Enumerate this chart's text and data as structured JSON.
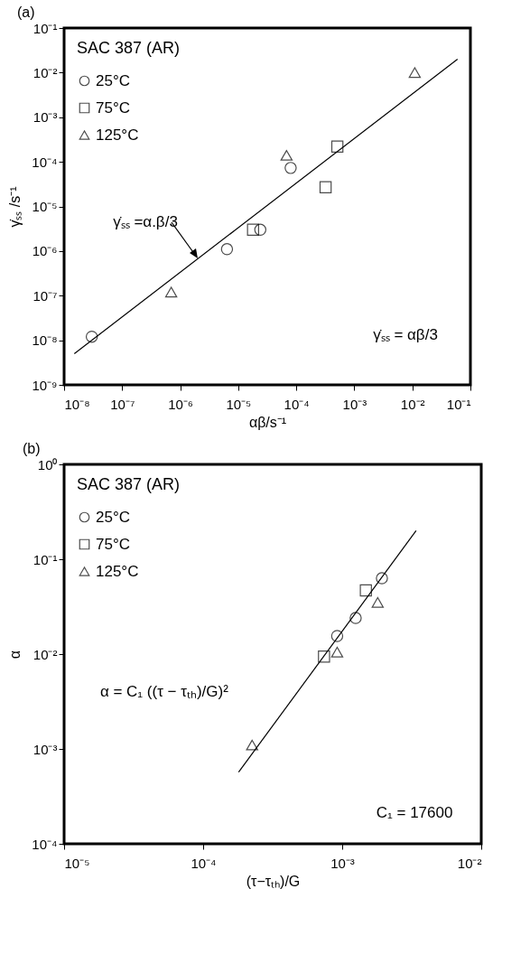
{
  "chart_data": [
    {
      "type": "scatter",
      "title": "(a)",
      "xlabel": "αβ/s⁻¹",
      "ylabel": "γ̇ₛₛ /s⁻¹",
      "legend_title": "SAC 387 (AR)",
      "log": "xy",
      "grid": false,
      "legend": "top left",
      "xlim": [
        1e-08,
        0.1
      ],
      "ylim": [
        1e-09,
        0.1
      ],
      "xticks": [
        {
          "value": 1e-08,
          "label": "10⁻⁸"
        },
        {
          "value": 1e-07,
          "label": "10⁻⁷"
        },
        {
          "value": 1e-06,
          "label": "10⁻⁶"
        },
        {
          "value": 1e-05,
          "label": "10⁻⁵"
        },
        {
          "value": 0.0001,
          "label": "10⁻⁴"
        },
        {
          "value": 0.001,
          "label": "10⁻³"
        },
        {
          "value": 0.01,
          "label": "10⁻²"
        },
        {
          "value": 0.1,
          "label": "10⁻¹"
        }
      ],
      "yticks": [
        {
          "value": 1e-09,
          "label": "10⁻⁹"
        },
        {
          "value": 1e-08,
          "label": "10⁻⁸"
        },
        {
          "value": 1e-07,
          "label": "10⁻⁷"
        },
        {
          "value": 1e-06,
          "label": "10⁻⁶"
        },
        {
          "value": 1e-05,
          "label": "10⁻⁵"
        },
        {
          "value": 0.0001,
          "label": "10⁻⁴"
        },
        {
          "value": 0.001,
          "label": "10⁻³"
        },
        {
          "value": 0.01,
          "label": "10⁻²"
        },
        {
          "value": 0.1,
          "label": "10⁻¹"
        }
      ],
      "series": [
        {
          "name": "25°C",
          "color": "#000000",
          "marker": "circle",
          "x": [
            3e-08,
            6.4e-06,
            2.4e-05,
            8e-05
          ],
          "values": [
            1.2e-08,
            1.1e-06,
            3e-06,
            7.3e-05
          ]
        },
        {
          "name": "75°C",
          "color": "#000000",
          "marker": "square",
          "x": [
            1.8e-05,
            0.00032,
            0.00051
          ],
          "values": [
            3e-06,
            2.7e-05,
            0.00022
          ]
        },
        {
          "name": "125°C",
          "color": "#000000",
          "marker": "triangle",
          "x": [
            7e-07,
            6.8e-05,
            0.011
          ],
          "values": [
            1.2e-07,
            0.00014,
            0.01
          ]
        },
        {
          "type": "line",
          "color": "#000000",
          "line_style": "solid",
          "x": [
            1.5e-08,
            0.06
          ],
          "values": [
            5e-09,
            0.02
          ]
        }
      ],
      "annotations": [
        "γ̇ₛₛ =α.β/3",
        "γ̇ₛₛ = αβ/3"
      ]
    },
    {
      "type": "scatter",
      "title": "(b)",
      "xlabel": "(τ−τₜₕ)/G",
      "ylabel": "α",
      "legend_title": "SAC 387 (AR)",
      "log": "xy",
      "grid": false,
      "legend": "top left",
      "xlim": [
        1e-05,
        0.01
      ],
      "ylim": [
        0.0001,
        1
      ],
      "xticks": [
        {
          "value": 1e-05,
          "label": "10⁻⁵"
        },
        {
          "value": 0.0001,
          "label": "10⁻⁴"
        },
        {
          "value": 0.001,
          "label": "10⁻³"
        },
        {
          "value": 0.01,
          "label": "10⁻²"
        }
      ],
      "yticks": [
        {
          "value": 0.0001,
          "label": "10⁻⁴"
        },
        {
          "value": 0.001,
          "label": "10⁻³"
        },
        {
          "value": 0.01,
          "label": "10⁻²"
        },
        {
          "value": 0.1,
          "label": "10⁻¹"
        },
        {
          "value": 1,
          "label": "10⁰"
        }
      ],
      "series": [
        {
          "name": "25°C",
          "color": "#000000",
          "marker": "circle",
          "x": [
            0.00092,
            0.00125,
            0.00193
          ],
          "values": [
            0.0155,
            0.024,
            0.063
          ]
        },
        {
          "name": "75°C",
          "color": "#000000",
          "marker": "square",
          "x": [
            0.00074,
            0.00148
          ],
          "values": [
            0.0094,
            0.047
          ]
        },
        {
          "name": "125°C",
          "color": "#000000",
          "marker": "triangle",
          "x": [
            0.000225,
            0.00092,
            0.0018
          ],
          "values": [
            0.0011,
            0.0105,
            0.035
          ]
        },
        {
          "type": "line",
          "color": "#000000",
          "line_style": "solid",
          "x": [
            0.00018,
            0.0034
          ],
          "values": [
            0.00057,
            0.2
          ]
        }
      ],
      "annotations": [
        "α = C₁ ((τ − τₜₕ)/G)²",
        "C₁ = 17600"
      ]
    }
  ]
}
